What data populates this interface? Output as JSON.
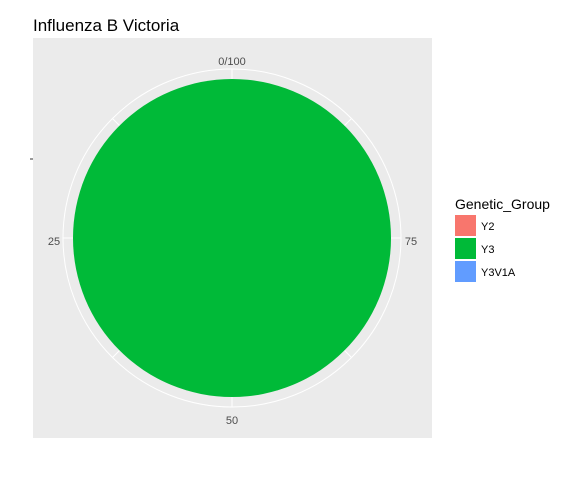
{
  "chart_data": {
    "type": "pie",
    "title": "Influenza B Victoria",
    "theta_ticks": [
      "0/100",
      "25",
      "50",
      "75"
    ],
    "legend": {
      "title": "Genetic_Group",
      "placement": "right",
      "entries": [
        {
          "label": "Y2",
          "color": "#F8766D"
        },
        {
          "label": "Y3",
          "color": "#00BA38"
        },
        {
          "label": "Y3V1A",
          "color": "#619CFF"
        }
      ]
    },
    "slices": [
      {
        "label": "Y2",
        "value": 0,
        "color": "#F8766D"
      },
      {
        "label": "Y3",
        "value": 100,
        "color": "#00BA38"
      },
      {
        "label": "Y3V1A",
        "value": 0,
        "color": "#619CFF"
      }
    ],
    "panel_background": "#EBEBEB",
    "grid_color": "#FFFFFF",
    "grid": true
  }
}
